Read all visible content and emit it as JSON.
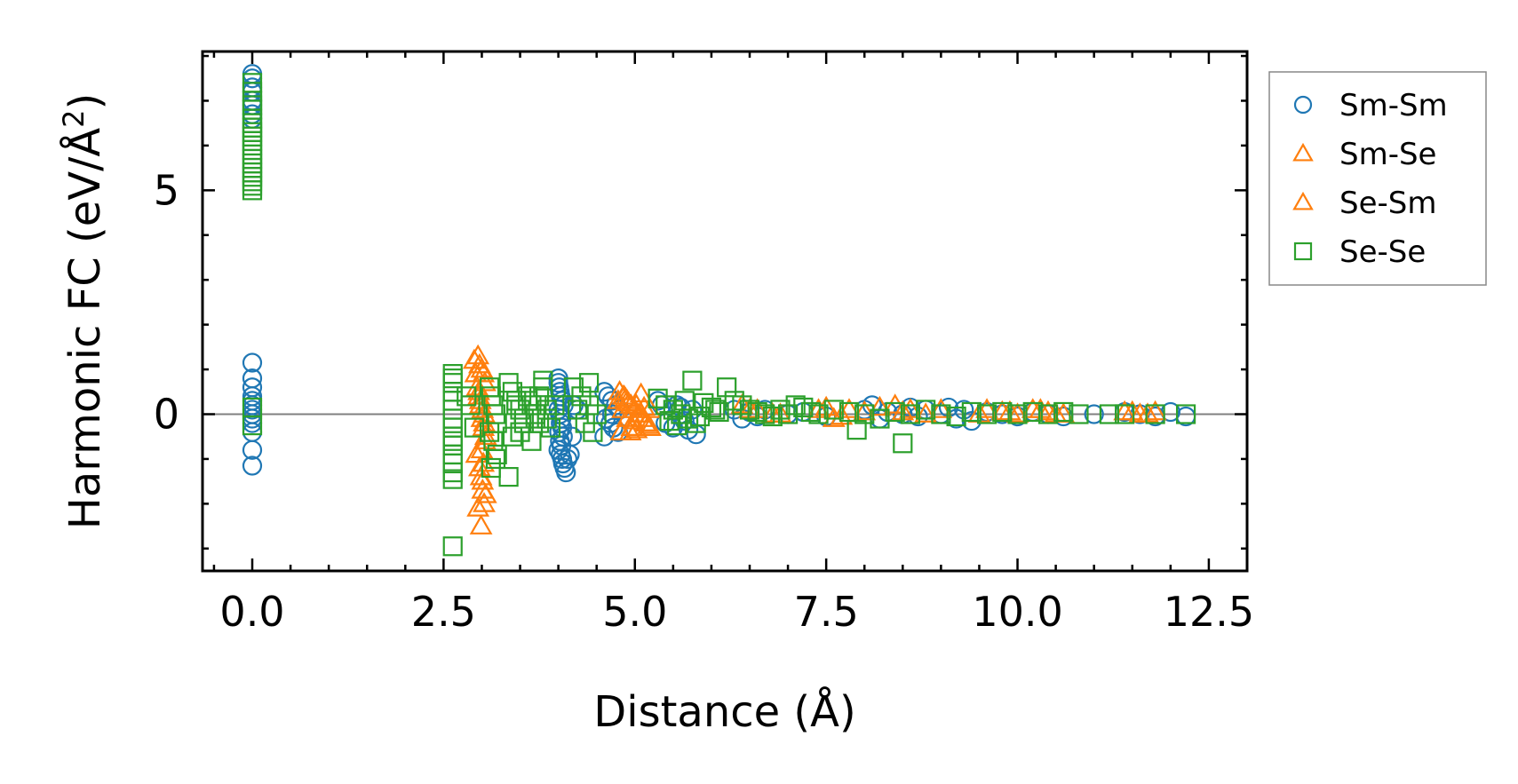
{
  "chart_data": {
    "type": "scatter",
    "title": "",
    "xlabel": "Distance (Å)",
    "ylabel_prefix": "Harmonic FC (eV/Å",
    "ylabel_superscript": "2",
    "ylabel_suffix": ")",
    "xlim": [
      -0.65,
      13.0
    ],
    "ylim": [
      -3.5,
      8.1
    ],
    "xticks": [
      0.0,
      2.5,
      5.0,
      7.5,
      10.0,
      12.5
    ],
    "xtick_labels": [
      "0.0",
      "2.5",
      "5.0",
      "7.5",
      "10.0",
      "12.5"
    ],
    "yticks": [
      0,
      5
    ],
    "ytick_labels": [
      "0",
      "5"
    ],
    "legend_position": "outside-right-top",
    "colors": {
      "blue": "#1f77b4",
      "orange": "#ff7f0e",
      "green": "#2ca02c",
      "zero_line": "#808080"
    },
    "series": [
      {
        "name": "Sm-Sm",
        "marker": "circle",
        "color": "#1f77b4",
        "x": [
          0,
          0,
          0,
          0,
          0,
          0,
          0,
          0,
          0,
          0,
          0,
          0,
          0,
          0,
          0,
          0,
          0,
          0,
          0,
          0,
          0,
          4.0,
          4.0,
          4.01,
          4.02,
          4.03,
          4.05,
          4.07,
          4.0,
          4.02,
          4.04,
          4.03,
          4.05,
          4.01,
          4.06,
          4.02,
          4.04,
          4.0,
          4.03,
          4.05,
          4.06,
          4.08,
          4.1,
          4.12,
          4.15,
          4.18,
          4.2,
          4.25,
          4.6,
          4.65,
          4.7,
          4.75,
          4.8,
          4.62,
          4.68,
          4.72,
          4.78,
          4.6,
          4.7,
          5.3,
          5.35,
          5.4,
          5.5,
          5.6,
          5.7,
          5.8,
          5.75,
          5.65,
          5.55,
          6.3,
          6.4,
          6.5,
          6.6,
          6.7,
          7.0,
          7.2,
          7.5,
          8.0,
          8.1,
          8.2,
          8.3,
          8.5,
          8.6,
          8.7,
          8.8,
          9.0,
          9.1,
          9.2,
          9.3,
          9.4,
          9.6,
          9.8,
          10.0,
          10.2,
          10.4,
          10.6,
          11.0,
          11.4,
          11.6,
          11.8,
          12.0,
          12.2
        ],
        "y": [
          7.6,
          7.5,
          7.3,
          7.2,
          7.0,
          6.9,
          6.7,
          6.6,
          1.15,
          0.8,
          0.6,
          0.4,
          0.2,
          0.0,
          -0.2,
          -0.4,
          -0.8,
          -1.15,
          0.1,
          -0.1,
          0.3,
          0.8,
          0.7,
          0.6,
          0.5,
          0.4,
          0.3,
          0.2,
          0.1,
          0.0,
          -0.1,
          -0.2,
          -0.3,
          -0.4,
          -0.5,
          -0.6,
          -0.7,
          -0.8,
          -0.9,
          -1.0,
          -1.1,
          -1.2,
          -1.3,
          -1.0,
          -0.9,
          -0.5,
          0.2,
          0.1,
          0.5,
          0.4,
          0.3,
          0.2,
          0.1,
          -0.1,
          -0.2,
          -0.3,
          -0.4,
          -0.5,
          0.0,
          0.3,
          0.2,
          -0.2,
          -0.3,
          0.15,
          -0.35,
          -0.45,
          0.1,
          -0.15,
          0.2,
          0.1,
          -0.1,
          0.05,
          -0.05,
          0.1,
          0.0,
          0.05,
          -0.05,
          0.1,
          0.2,
          -0.1,
          0.05,
          0.0,
          0.15,
          -0.05,
          0.1,
          0.0,
          0.15,
          -0.1,
          0.1,
          -0.15,
          0.05,
          0.0,
          -0.05,
          0.05,
          0.0,
          -0.05,
          0.0,
          0.05,
          0.0,
          -0.05,
          0.05,
          -0.05
        ]
      },
      {
        "name": "Sm-Se",
        "marker": "triangle",
        "color": "#ff7f0e",
        "x": [
          2.95,
          2.97,
          3.0,
          3.02,
          3.04,
          2.96,
          2.98,
          3.01,
          3.03,
          3.05,
          3.0,
          3.02,
          2.99,
          3.01,
          3.03,
          4.8,
          4.85,
          4.9,
          4.95,
          5.0,
          5.05,
          5.1,
          5.15,
          5.2,
          4.82,
          4.88,
          4.92,
          4.98,
          5.02,
          5.08,
          5.12,
          5.18,
          6.4,
          6.6,
          6.8,
          7.5,
          7.6,
          7.8,
          8.0,
          8.4,
          8.6,
          8.8,
          9.6,
          9.8,
          10.0,
          10.2,
          10.4,
          10.6,
          11.4,
          11.6,
          11.8
        ],
        "y": [
          1.3,
          1.1,
          1.0,
          0.9,
          0.7,
          0.5,
          0.3,
          0.1,
          -0.2,
          -0.5,
          -0.8,
          -1.1,
          -1.4,
          -1.7,
          -2.0,
          0.5,
          0.4,
          0.3,
          0.2,
          0.1,
          0.0,
          -0.1,
          -0.2,
          -0.3,
          -0.4,
          0.35,
          0.25,
          -0.15,
          -0.35,
          0.45,
          0.15,
          -0.25,
          0.2,
          0.1,
          0.0,
          0.15,
          -0.1,
          0.1,
          0.05,
          0.2,
          0.1,
          0.0,
          0.1,
          0.05,
          0.0,
          0.1,
          0.05,
          0.0,
          0.05,
          0.0,
          0.05
        ]
      },
      {
        "name": "Se-Sm",
        "marker": "triangle",
        "color": "#ff7f0e",
        "x": [
          2.9,
          2.92,
          2.94,
          2.96,
          2.98,
          3.0,
          3.02,
          3.04,
          2.93,
          2.97,
          3.01,
          3.05,
          2.95,
          2.99,
          3.03,
          4.78,
          4.84,
          4.9,
          4.96,
          5.02,
          5.08,
          5.14,
          5.2,
          4.86,
          4.94,
          6.5,
          6.9,
          7.4,
          7.7,
          8.2,
          8.5,
          9.0,
          9.5,
          9.9,
          10.3,
          10.5,
          11.5,
          11.7
        ],
        "y": [
          1.2,
          0.9,
          0.6,
          0.4,
          0.2,
          -0.1,
          -0.3,
          -0.6,
          -0.9,
          -1.2,
          -1.5,
          -1.8,
          -2.1,
          -2.5,
          0.0,
          0.3,
          0.1,
          -0.1,
          -0.3,
          0.2,
          0.0,
          -0.2,
          0.1,
          0.4,
          -0.4,
          0.1,
          0.0,
          0.1,
          -0.05,
          0.15,
          0.05,
          0.1,
          0.0,
          0.05,
          0.1,
          0.0,
          0.05,
          0.0
        ]
      },
      {
        "name": "Se-Se",
        "marker": "square",
        "color": "#2ca02c",
        "x": [
          0,
          0,
          0,
          0,
          0,
          0,
          0,
          0,
          0,
          0,
          0,
          0,
          0,
          0,
          0,
          0,
          0,
          0,
          0,
          0,
          0,
          0,
          0,
          0,
          2.62,
          2.62,
          2.62,
          2.62,
          2.62,
          2.62,
          2.62,
          2.62,
          2.62,
          2.62,
          2.62,
          2.62,
          2.62,
          2.62,
          2.62,
          2.62,
          2.8,
          2.85,
          2.9,
          3.1,
          3.12,
          3.15,
          3.18,
          3.2,
          3.1,
          3.15,
          3.2,
          3.12,
          3.18,
          3.35,
          3.4,
          3.45,
          3.5,
          3.55,
          3.6,
          3.65,
          3.7,
          3.75,
          3.8,
          3.85,
          3.9,
          3.4,
          3.5,
          3.6,
          3.7,
          3.8,
          3.45,
          3.55,
          3.65,
          3.75,
          3.85,
          3.35,
          3.95,
          4.2,
          4.3,
          4.4,
          4.5,
          4.35,
          4.45,
          4.25,
          4.4,
          5.3,
          5.4,
          5.5,
          5.6,
          5.7,
          5.8,
          5.9,
          6.0,
          6.1,
          5.45,
          5.65,
          5.85,
          6.05,
          5.55,
          5.75,
          6.2,
          6.3,
          6.4,
          6.5,
          6.6,
          6.7,
          6.8,
          6.9,
          7.0,
          7.1,
          7.2,
          7.3,
          7.4,
          7.6,
          7.8,
          8.0,
          8.2,
          8.4,
          8.6,
          8.8,
          9.0,
          9.2,
          9.4,
          9.6,
          9.8,
          10.0,
          10.2,
          10.4,
          10.6,
          10.8,
          11.2,
          11.4,
          11.8,
          12.2,
          8.5,
          7.9
        ],
        "y": [
          7.4,
          7.2,
          7.0,
          6.9,
          6.8,
          6.6,
          6.5,
          6.4,
          6.3,
          6.2,
          6.1,
          6.0,
          5.9,
          5.8,
          5.7,
          5.6,
          5.5,
          5.4,
          5.3,
          5.2,
          5.1,
          5.0,
          0.15,
          -0.25,
          0.9,
          0.7,
          0.5,
          0.3,
          0.1,
          -0.1,
          -0.3,
          -0.5,
          -0.7,
          -0.9,
          -1.1,
          -1.3,
          -1.45,
          0.8,
          -0.6,
          -2.95,
          0.4,
          0.2,
          -0.3,
          0.6,
          0.4,
          0.2,
          0.0,
          -0.2,
          -0.4,
          -0.6,
          -0.9,
          -1.2,
          -1.0,
          0.7,
          0.5,
          0.3,
          0.1,
          -0.1,
          0.4,
          0.2,
          0.0,
          -0.2,
          0.6,
          0.1,
          -0.3,
          -0.5,
          -0.4,
          0.3,
          -0.1,
          0.75,
          0.2,
          -0.2,
          -0.6,
          0.4,
          -0.1,
          -1.4,
          0.2,
          0.6,
          0.4,
          0.2,
          0.0,
          -0.2,
          -0.4,
          0.1,
          0.7,
          0.35,
          0.2,
          0.1,
          0.0,
          -0.1,
          -0.2,
          0.25,
          0.15,
          0.05,
          -0.15,
          0.3,
          -0.05,
          0.1,
          -0.25,
          0.75,
          0.6,
          0.3,
          0.2,
          0.1,
          0.05,
          0.0,
          -0.05,
          0.1,
          0.0,
          0.2,
          0.15,
          0.05,
          0.0,
          0.1,
          0.05,
          0.0,
          -0.1,
          0.05,
          0.0,
          0.1,
          0.0,
          -0.05,
          0.05,
          0.0,
          0.05,
          0.0,
          0.05,
          0.0,
          0.05,
          0.0,
          0.0,
          0.0,
          0.0,
          0.0,
          -0.65,
          -0.35
        ]
      }
    ]
  }
}
